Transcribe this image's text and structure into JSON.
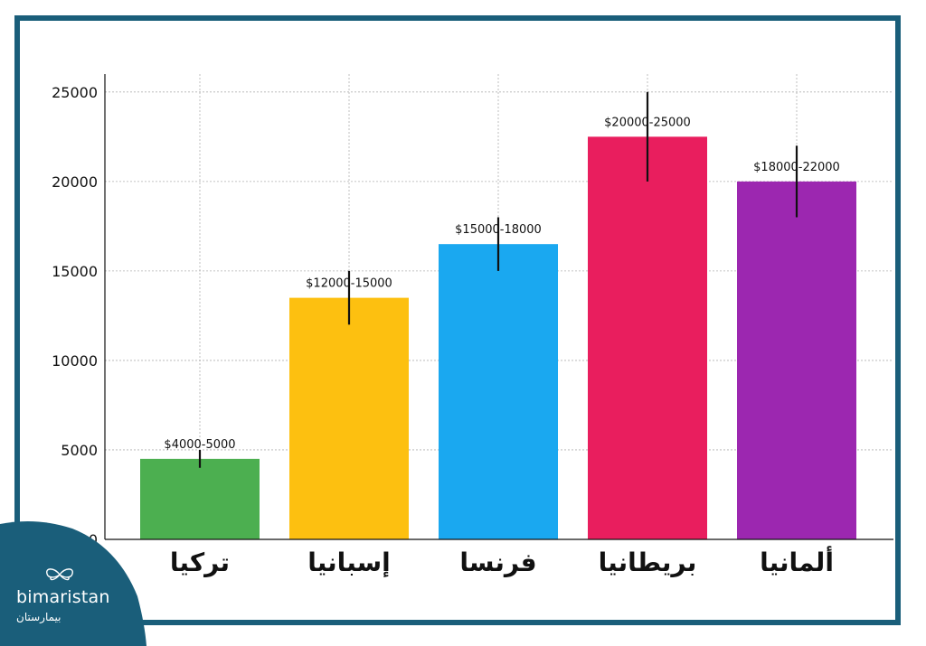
{
  "chart_data": {
    "type": "bar",
    "categories": [
      "تركيا",
      "إسبانيا",
      "فرنسا",
      "بريطانيا",
      "ألمانيا"
    ],
    "values": [
      4500,
      13500,
      16500,
      22500,
      20000
    ],
    "error_ranges": [
      [
        4000,
        5000
      ],
      [
        12000,
        15000
      ],
      [
        15000,
        18000
      ],
      [
        20000,
        25000
      ],
      [
        18000,
        22000
      ]
    ],
    "labels": [
      "$4000-5000",
      "$12000-15000",
      "$15000-18000",
      "$20000-25000",
      "$18000-22000"
    ],
    "colors": [
      "#4caf50",
      "#fdc010",
      "#1aa8f0",
      "#e91e5e",
      "#9c27b0"
    ],
    "title": "",
    "xlabel": "",
    "ylabel": "",
    "ylim": [
      0,
      26000
    ],
    "yticks": [
      0,
      5000,
      10000,
      15000,
      20000,
      25000
    ],
    "grid": true
  },
  "brand": {
    "name": "bimaristan",
    "name_ar": "بيمارستان",
    "logo_icon": "butterfly-icon",
    "color": "#1a5e7a"
  }
}
